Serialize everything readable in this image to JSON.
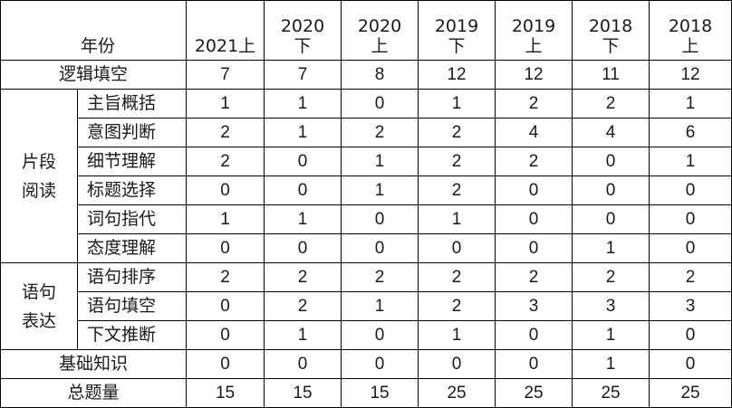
{
  "table": {
    "corner_label": "年份",
    "columns": [
      {
        "line1": "",
        "line2": "2021上"
      },
      {
        "line1": "2020",
        "line2": "下"
      },
      {
        "line1": "2020",
        "line2": "上"
      },
      {
        "line1": "2019",
        "line2": "下"
      },
      {
        "line1": "2019",
        "line2": "上"
      },
      {
        "line1": "2018",
        "line2": "下"
      },
      {
        "line1": "2018",
        "line2": "上"
      }
    ],
    "rows": [
      {
        "label": "逻辑填空",
        "values": [
          "7",
          "7",
          "8",
          "12",
          "12",
          "11",
          "12"
        ]
      },
      {
        "group": {
          "line1": "片段",
          "line2": "阅读"
        },
        "label": "主旨概括",
        "values": [
          "1",
          "1",
          "0",
          "1",
          "2",
          "2",
          "1"
        ]
      },
      {
        "label": "意图判断",
        "values": [
          "2",
          "1",
          "2",
          "2",
          "4",
          "4",
          "6"
        ]
      },
      {
        "label": "细节理解",
        "values": [
          "2",
          "0",
          "1",
          "2",
          "2",
          "0",
          "1"
        ]
      },
      {
        "label": "标题选择",
        "values": [
          "0",
          "0",
          "1",
          "2",
          "0",
          "0",
          "0"
        ]
      },
      {
        "label": "词句指代",
        "values": [
          "1",
          "1",
          "0",
          "1",
          "0",
          "0",
          "0"
        ]
      },
      {
        "label": "态度理解",
        "values": [
          "0",
          "0",
          "0",
          "0",
          "0",
          "1",
          "0"
        ]
      },
      {
        "group": {
          "line1": "语句",
          "line2": "表达"
        },
        "label": "语句排序",
        "values": [
          "2",
          "2",
          "2",
          "2",
          "2",
          "2",
          "2"
        ]
      },
      {
        "label": "语句填空",
        "values": [
          "0",
          "2",
          "1",
          "2",
          "3",
          "3",
          "3"
        ]
      },
      {
        "label": "下文推断",
        "values": [
          "0",
          "1",
          "0",
          "1",
          "0",
          "1",
          "0"
        ]
      },
      {
        "label": "基础知识",
        "values": [
          "0",
          "0",
          "0",
          "0",
          "0",
          "1",
          "0"
        ]
      },
      {
        "label": "总题量",
        "values": [
          "15",
          "15",
          "15",
          "25",
          "25",
          "25",
          "25"
        ]
      }
    ]
  }
}
